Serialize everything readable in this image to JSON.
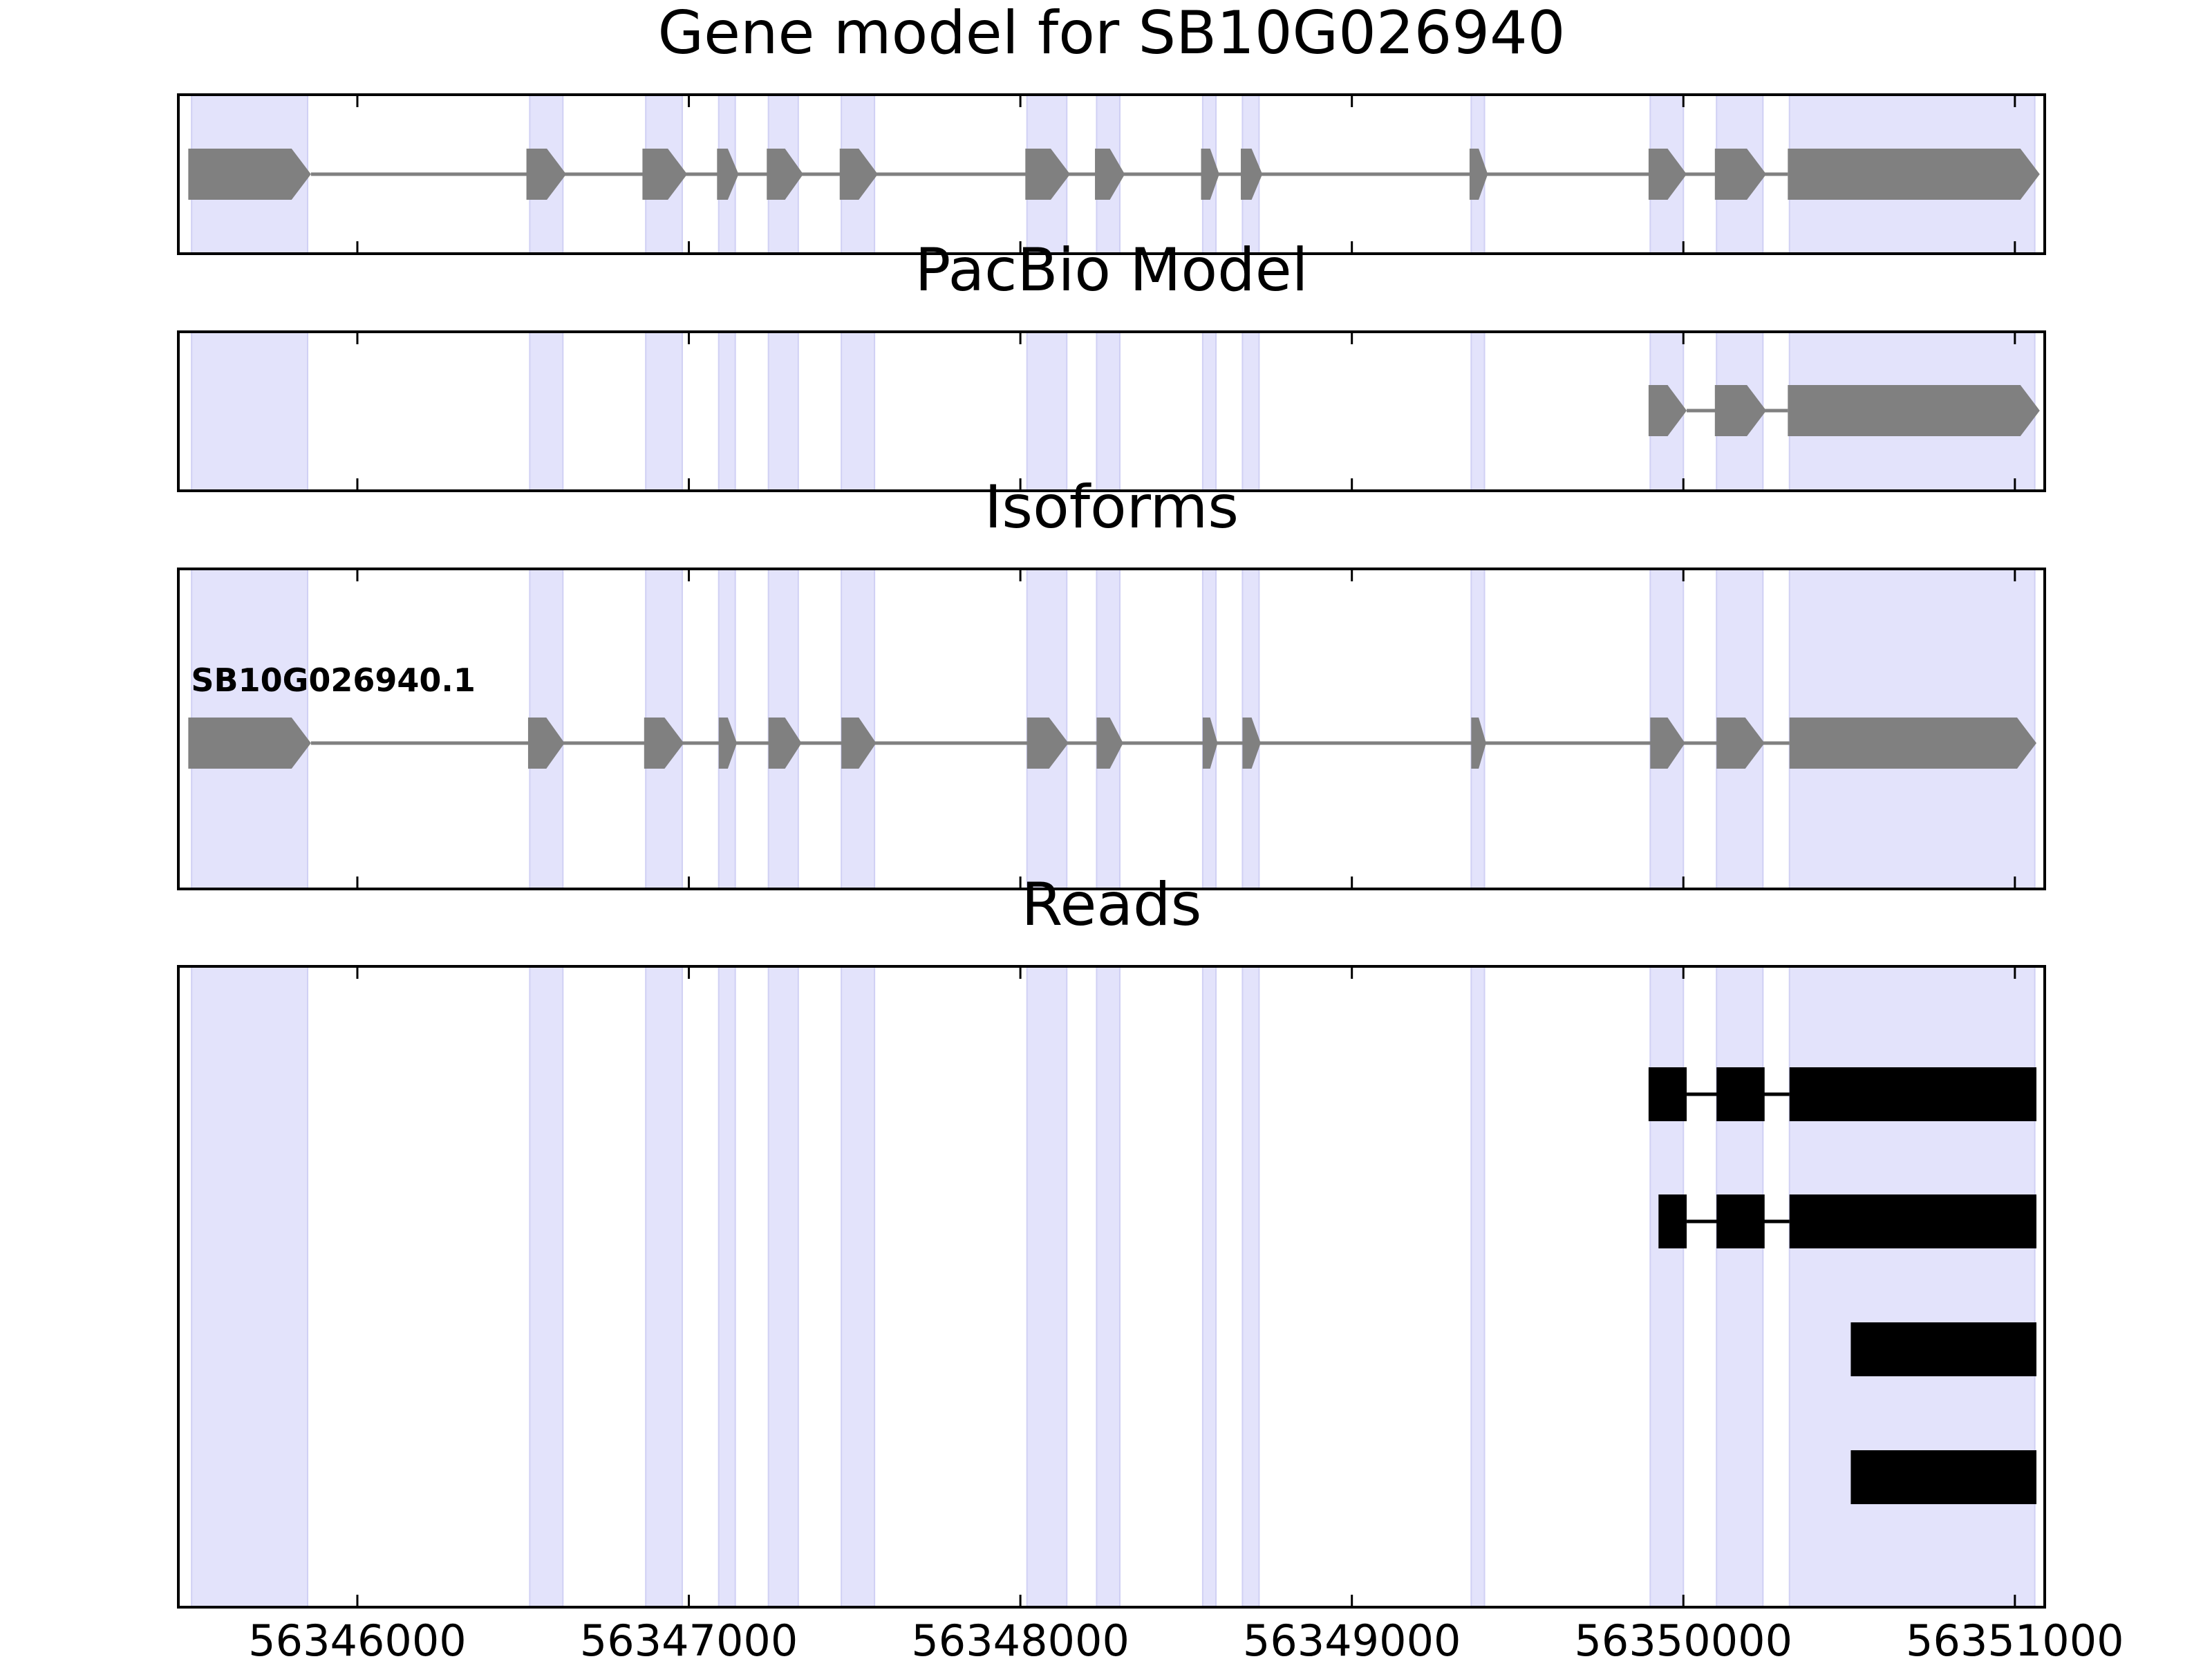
{
  "figure_title": "Gene model for SB10G026940",
  "chart_data": {
    "type": "gene-track",
    "xlim": [
      56345460,
      56351090
    ],
    "xticks": [
      56346000,
      56347000,
      56348000,
      56349000,
      56350000,
      56351000
    ],
    "xtick_labels": [
      "56346000",
      "56347000",
      "56348000",
      "56349000",
      "56350000",
      "56351000"
    ],
    "exon_regions": [
      [
        56345500,
        56345850
      ],
      [
        56346520,
        56346620
      ],
      [
        56346870,
        56346980
      ],
      [
        56347090,
        56347140
      ],
      [
        56347240,
        56347330
      ],
      [
        56347460,
        56347560
      ],
      [
        56348020,
        56348140
      ],
      [
        56348230,
        56348300
      ],
      [
        56348550,
        56348590
      ],
      [
        56348670,
        56348720
      ],
      [
        56349360,
        56349400
      ],
      [
        56349900,
        56350000
      ],
      [
        56350100,
        56350240
      ],
      [
        56350320,
        56351060
      ]
    ],
    "colors": {
      "shade": "#e3e3fb",
      "model": "#808080",
      "read": "#000000"
    },
    "panels": [
      {
        "title": "Gene model for SB10G026940",
        "kind": "model",
        "tracks": [
          {
            "label": "",
            "exons": [
              [
                56345490,
                56345860
              ],
              [
                56346510,
                56346630
              ],
              [
                56346860,
                56346995
              ],
              [
                56347085,
                56347150
              ],
              [
                56347235,
                56347345
              ],
              [
                56347455,
                56347570
              ],
              [
                56348015,
                56348150
              ],
              [
                56348225,
                56348315
              ],
              [
                56348545,
                56348600
              ],
              [
                56348665,
                56348730
              ],
              [
                56349355,
                56349410
              ],
              [
                56349895,
                56350010
              ],
              [
                56350095,
                56350250
              ],
              [
                56350315,
                56351075
              ]
            ]
          }
        ]
      },
      {
        "title": "PacBio Model",
        "kind": "model",
        "tracks": [
          {
            "label": "",
            "exons": [
              [
                56349895,
                56350010
              ],
              [
                56350095,
                56350250
              ],
              [
                56350315,
                56351075
              ]
            ]
          }
        ]
      },
      {
        "title": "Isoforms",
        "kind": "model",
        "tracks": [
          {
            "label": "SB10G026940.1",
            "exons": [
              [
                56345490,
                56345860
              ],
              [
                56346515,
                56346625
              ],
              [
                56346865,
                56346985
              ],
              [
                56347090,
                56347145
              ],
              [
                56347240,
                56347340
              ],
              [
                56347460,
                56347565
              ],
              [
                56348020,
                56348145
              ],
              [
                56348230,
                56348310
              ],
              [
                56348550,
                56348595
              ],
              [
                56348670,
                56348725
              ],
              [
                56349360,
                56349405
              ],
              [
                56349900,
                56350005
              ],
              [
                56350100,
                56350245
              ],
              [
                56350320,
                56351065
              ]
            ]
          }
        ]
      },
      {
        "title": "Reads",
        "kind": "reads",
        "tracks": [
          {
            "label": "",
            "exons": [
              [
                56349895,
                56350010
              ],
              [
                56350100,
                56350245
              ],
              [
                56350320,
                56351065
              ]
            ]
          },
          {
            "label": "",
            "exons": [
              [
                56349925,
                56350010
              ],
              [
                56350100,
                56350245
              ],
              [
                56350320,
                56351065
              ]
            ]
          },
          {
            "label": "",
            "exons": [
              [
                56350505,
                56351065
              ]
            ]
          },
          {
            "label": "",
            "exons": [
              [
                56350505,
                56351065
              ]
            ]
          }
        ]
      }
    ]
  }
}
